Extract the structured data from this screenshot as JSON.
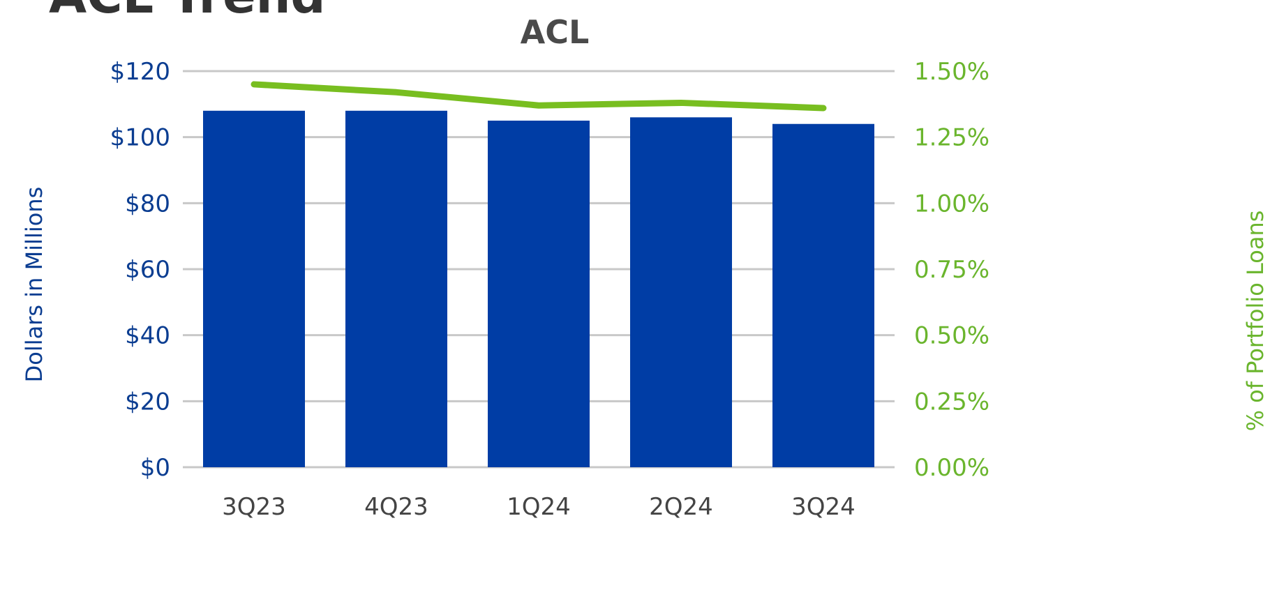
{
  "page": {
    "slide_title": "ACL Trend"
  },
  "chart_data": {
    "type": "bar",
    "title": "ACL",
    "categories": [
      "3Q23",
      "4Q23",
      "1Q24",
      "2Q24",
      "3Q24"
    ],
    "series": [
      {
        "values": [
          108,
          108,
          105,
          106,
          104
        ],
        "axis": "left",
        "kind": "bar",
        "color": "#003da5"
      },
      {
        "values": [
          1.45,
          1.42,
          1.37,
          1.38,
          1.36
        ],
        "axis": "right",
        "kind": "line",
        "color": "#78be20"
      }
    ],
    "ylabel": "Dollars in Millions",
    "y2label": "% of Portfolio Loans",
    "ylim": [
      0,
      120
    ],
    "y2lim": [
      0,
      1.5
    ],
    "yticks": [
      "$0",
      "$20",
      "$40",
      "$60",
      "$80",
      "$100",
      "$120"
    ],
    "y2ticks": [
      "0.00%",
      "0.25%",
      "0.50%",
      "0.75%",
      "1.00%",
      "1.25%",
      "1.50%"
    ],
    "grid": true,
    "legend": "none"
  }
}
